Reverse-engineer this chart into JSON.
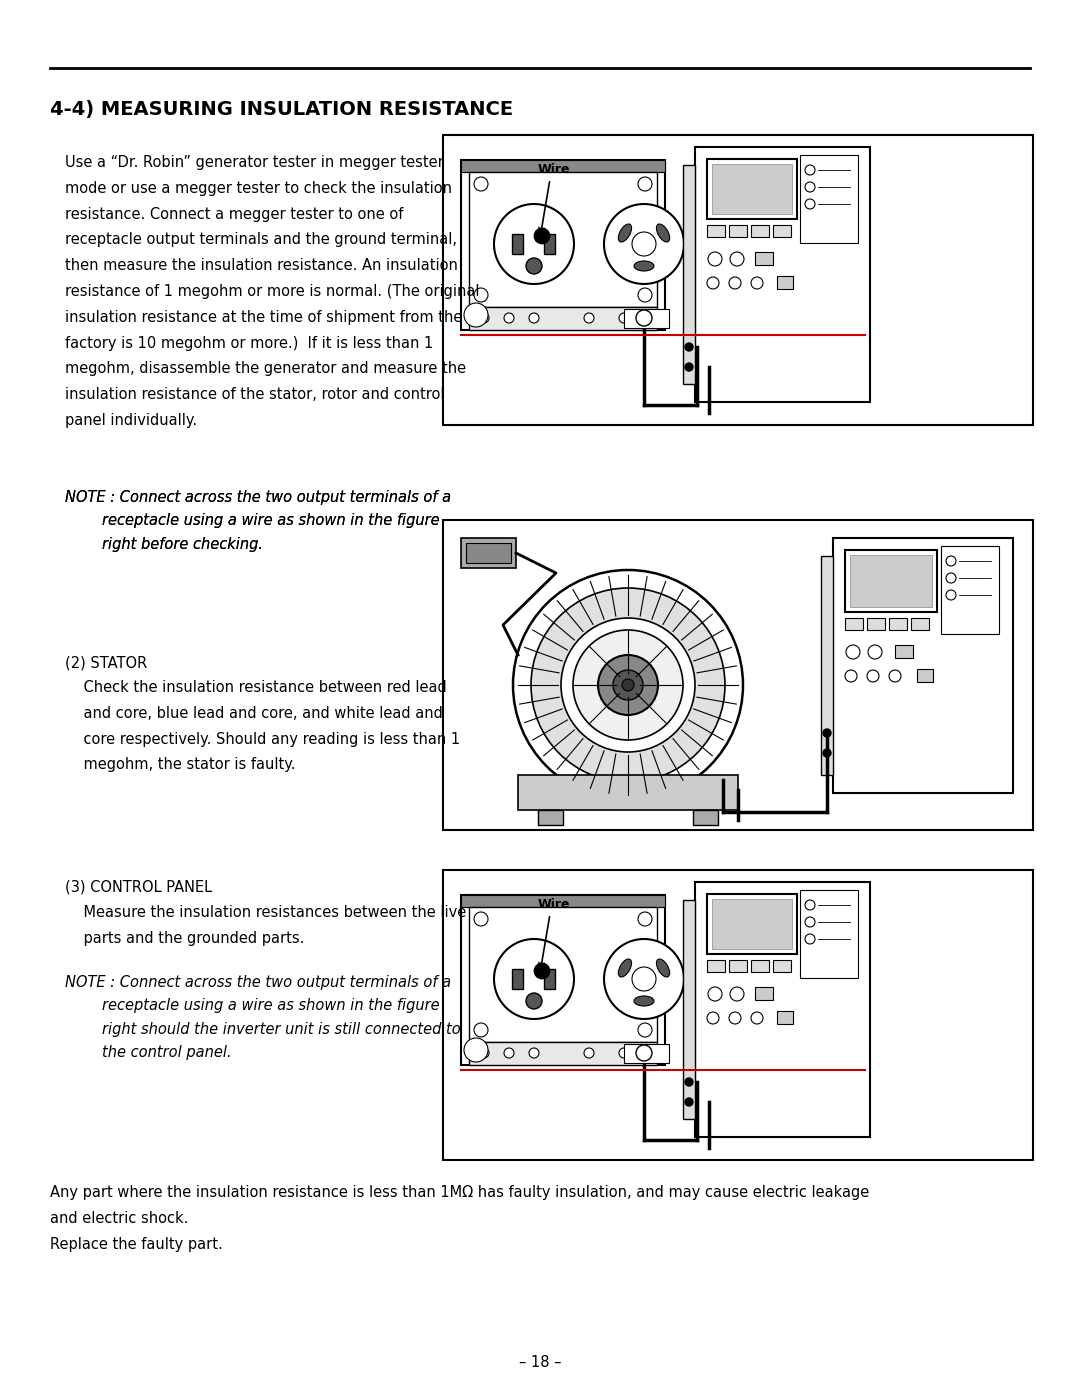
{
  "title": "4-4) MEASURING INSULATION RESISTANCE",
  "section_heading_fontsize": 14,
  "body_fontsize": 10.5,
  "note_fontsize": 10.5,
  "page_number": "– 18 –",
  "background_color": "#ffffff",
  "text_color": "#000000",
  "body_text_1": "Use a “Dr. Robin” generator tester in megger tester\nmode or use a megger tester to check the insulation\nresistance. Connect a megger tester to one of\nreceptacle output terminals and the ground terminal,\nthen measure the insulation resistance. An insulation\nresistance of 1 megohm or more is normal. (The original\ninsulation resistance at the time of shipment from the\nfactory is 10 megohm or more.)  If it is less than 1\nmegohm, disassemble the generator and measure the\ninsulation resistance of the stator, rotor and control\npanel individually.",
  "note_text_1": "NOTE : Connect across the two output terminals of a\n        receptacle using a wire as shown in the figure\n        right before checking.",
  "stator_heading": "(2) STATOR",
  "stator_body": "    Check the insulation resistance between red lead\n    and core, blue lead and core, and white lead and\n    core respectively. Should any reading is less than 1\n    megohm, the stator is faulty.",
  "control_heading": "(3) CONTROL PANEL",
  "control_body": "    Measure the insulation resistances between the live\n    parts and the grounded parts.",
  "note_text_3": "NOTE : Connect across the two output terminals of a\n        receptacle using a wire as shown in the figure\n        right should the inverter unit is still connected to\n        the control panel.",
  "footer_text": "Any part where the insulation resistance is less than 1MΩ has faulty insulation, and may cause electric leakage\nand electric shock.\nReplace the faulty part."
}
